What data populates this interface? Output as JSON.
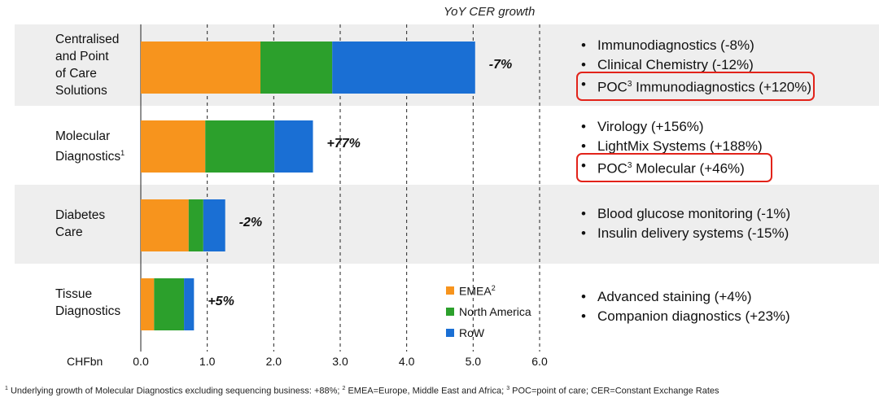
{
  "title": "YoY CER growth",
  "unit_label": "CHFbn",
  "colors": {
    "EMEA": "#f7941d",
    "North America": "#2ca02c",
    "RoW": "#1a6fd4",
    "band": "#eeeeee",
    "highlight": "#e2231a"
  },
  "chart_data": {
    "type": "bar",
    "orientation": "horizontal",
    "stacked": true,
    "categories": [
      "Centralised and Point of Care Solutions",
      "Molecular Diagnostics",
      "Diabetes Care",
      "Tissue Diagnostics"
    ],
    "series": [
      {
        "name": "EMEA",
        "values": [
          1.8,
          0.97,
          0.72,
          0.2
        ]
      },
      {
        "name": "North America",
        "values": [
          1.08,
          1.04,
          0.22,
          0.45
        ]
      },
      {
        "name": "RoW",
        "values": [
          2.15,
          0.58,
          0.33,
          0.15
        ]
      }
    ],
    "xlim": [
      0,
      6
    ],
    "ticks": [
      "0.0",
      "1.0",
      "2.0",
      "3.0",
      "4.0",
      "5.0",
      "6.0"
    ],
    "grid": "dashed vertical",
    "legend": "bottom-right"
  },
  "rows": [
    {
      "label_lines": [
        "Centralised",
        "and Point",
        "of Care",
        "Solutions"
      ],
      "label_sup": "",
      "growth": "-7%",
      "bullets": [
        {
          "pre": "Immunodiagnostics (-8%)",
          "sup": "",
          "post": "",
          "highlight": false
        },
        {
          "pre": "Clinical Chemistry (-12%)",
          "sup": "",
          "post": "",
          "highlight": false
        },
        {
          "pre": "POC",
          "sup": "3",
          "post": " Immunodiagnostics (+120%)",
          "highlight": true
        }
      ]
    },
    {
      "label_lines": [
        "Molecular",
        "Diagnostics"
      ],
      "label_sup": "1",
      "growth": "+77%",
      "bullets": [
        {
          "pre": "Virology (+156%)",
          "sup": "",
          "post": "",
          "highlight": false
        },
        {
          "pre": "LightMix Systems (+188%)",
          "sup": "",
          "post": "",
          "highlight": false
        },
        {
          "pre": "POC",
          "sup": "3",
          "post": " Molecular (+46%)",
          "highlight": true
        }
      ]
    },
    {
      "label_lines": [
        "Diabetes",
        "Care"
      ],
      "label_sup": "",
      "growth": "-2%",
      "bullets": [
        {
          "pre": "Blood glucose monitoring (-1%)",
          "sup": "",
          "post": "",
          "highlight": false
        },
        {
          "pre": "Insulin delivery systems (-15%)",
          "sup": "",
          "post": "",
          "highlight": false
        }
      ]
    },
    {
      "label_lines": [
        "Tissue",
        "Diagnostics"
      ],
      "label_sup": "",
      "growth": "+5%",
      "bullets": [
        {
          "pre": "Advanced staining (+4%)",
          "sup": "",
          "post": "",
          "highlight": false
        },
        {
          "pre": "Companion diagnostics (+23%)",
          "sup": "",
          "post": "",
          "highlight": false
        }
      ]
    }
  ],
  "legend": [
    {
      "name": "EMEA",
      "sup": "2"
    },
    {
      "name": "North America",
      "sup": ""
    },
    {
      "name": "RoW",
      "sup": ""
    }
  ],
  "footnote": [
    {
      "sup": "1",
      "text": " Underlying growth of Molecular Diagnostics excluding sequencing business: +88%; "
    },
    {
      "sup": "2",
      "text": " EMEA=Europe, Middle East and Africa; "
    },
    {
      "sup": "3",
      "text": " POC=point of care; CER=Constant Exchange Rates"
    }
  ]
}
